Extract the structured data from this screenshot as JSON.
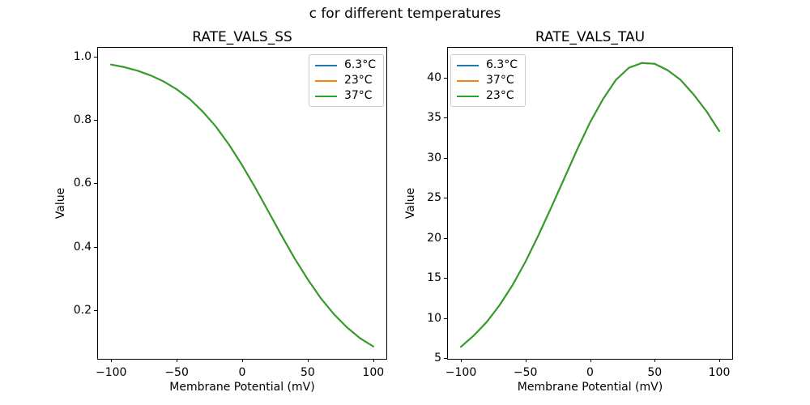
{
  "figure": {
    "suptitle": "c for different temperatures",
    "background": "#ffffff"
  },
  "palette": {
    "blue": "#1f77b4",
    "orange": "#ff7f0e",
    "green": "#2ca02c",
    "spine": "#000000",
    "legend_border": "#cccccc"
  },
  "chart_data": [
    {
      "type": "line",
      "title": "RATE_VALS_SS",
      "xlabel": "Membrane Potential (mV)",
      "ylabel": "Value",
      "xlim": [
        -110,
        110
      ],
      "ylim": [
        0.046,
        1.028
      ],
      "grid": false,
      "legend_position": "upper-right",
      "xticks": [
        -100,
        -50,
        0,
        50,
        100
      ],
      "xtick_labels": [
        "−100",
        "−50",
        "0",
        "50",
        "100"
      ],
      "yticks": [
        0.2,
        0.4,
        0.6,
        0.8,
        1.0
      ],
      "ytick_labels": [
        "0.2",
        "0.4",
        "0.6",
        "0.8",
        "1.0"
      ],
      "x": [
        -100,
        -90,
        -80,
        -70,
        -60,
        -50,
        -40,
        -30,
        -20,
        -10,
        0,
        10,
        20,
        30,
        40,
        50,
        60,
        70,
        80,
        90,
        100
      ],
      "series": [
        {
          "name": "6.3°C",
          "color": "#1f77b4",
          "values": [
            0.975,
            0.967,
            0.956,
            0.941,
            0.922,
            0.897,
            0.866,
            0.826,
            0.779,
            0.722,
            0.657,
            0.586,
            0.511,
            0.436,
            0.363,
            0.297,
            0.237,
            0.187,
            0.145,
            0.111,
            0.085
          ]
        },
        {
          "name": "23°C",
          "color": "#ff7f0e",
          "values": [
            0.975,
            0.967,
            0.956,
            0.941,
            0.922,
            0.897,
            0.866,
            0.826,
            0.779,
            0.722,
            0.657,
            0.586,
            0.511,
            0.436,
            0.363,
            0.297,
            0.237,
            0.187,
            0.145,
            0.111,
            0.085
          ]
        },
        {
          "name": "37°C",
          "color": "#2ca02c",
          "values": [
            0.975,
            0.967,
            0.956,
            0.941,
            0.922,
            0.897,
            0.866,
            0.826,
            0.779,
            0.722,
            0.657,
            0.586,
            0.511,
            0.436,
            0.363,
            0.297,
            0.237,
            0.187,
            0.145,
            0.111,
            0.085
          ]
        }
      ]
    },
    {
      "type": "line",
      "title": "RATE_VALS_TAU",
      "xlabel": "Membrane Potential (mV)",
      "ylabel": "Value",
      "xlim": [
        -110,
        110
      ],
      "ylim": [
        4.9,
        43.7
      ],
      "grid": false,
      "legend_position": "upper-left",
      "xticks": [
        -100,
        -50,
        0,
        50,
        100
      ],
      "xtick_labels": [
        "−100",
        "−50",
        "0",
        "50",
        "100"
      ],
      "yticks": [
        5,
        10,
        15,
        20,
        25,
        30,
        35,
        40
      ],
      "ytick_labels": [
        "5",
        "10",
        "15",
        "20",
        "25",
        "30",
        "35",
        "40"
      ],
      "x": [
        -100,
        -90,
        -80,
        -70,
        -60,
        -50,
        -40,
        -30,
        -20,
        -10,
        0,
        10,
        20,
        30,
        40,
        50,
        60,
        70,
        80,
        90,
        100
      ],
      "series": [
        {
          "name": "6.3°C",
          "color": "#1f77b4",
          "values": [
            6.4,
            7.8,
            9.5,
            11.6,
            14.1,
            17.0,
            20.3,
            23.8,
            27.4,
            31.0,
            34.4,
            37.3,
            39.7,
            41.2,
            41.8,
            41.7,
            40.9,
            39.7,
            37.9,
            35.8,
            33.3
          ]
        },
        {
          "name": "37°C",
          "color": "#ff7f0e",
          "values": [
            6.4,
            7.8,
            9.5,
            11.6,
            14.1,
            17.0,
            20.3,
            23.8,
            27.4,
            31.0,
            34.4,
            37.3,
            39.7,
            41.2,
            41.8,
            41.7,
            40.9,
            39.7,
            37.9,
            35.8,
            33.3
          ]
        },
        {
          "name": "23°C",
          "color": "#2ca02c",
          "values": [
            6.4,
            7.8,
            9.5,
            11.6,
            14.1,
            17.0,
            20.3,
            23.8,
            27.4,
            31.0,
            34.4,
            37.3,
            39.7,
            41.2,
            41.8,
            41.7,
            40.9,
            39.7,
            37.9,
            35.8,
            33.3
          ]
        }
      ]
    }
  ]
}
